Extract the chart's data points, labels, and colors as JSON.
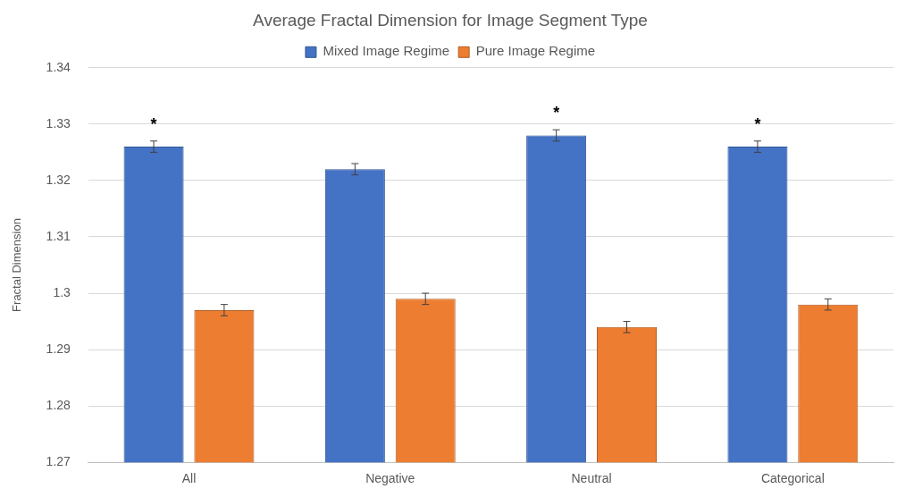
{
  "chart_data": {
    "type": "bar",
    "title": "Average Fractal Dimension for Image Segment Type",
    "ylabel": "Fractal Dimension",
    "categories": [
      "All",
      "Negative",
      "Neutral",
      "Categorical"
    ],
    "series": [
      {
        "name": "Mixed Image Regime",
        "color": "#4472c4",
        "values": [
          1.326,
          1.322,
          1.328,
          1.326
        ],
        "errors": [
          0.001,
          0.001,
          0.001,
          0.001
        ],
        "value_labels": [
          "*",
          null,
          "*",
          "*"
        ]
      },
      {
        "name": "Pure Image Regime",
        "color": "#ed7d31",
        "values": [
          1.297,
          1.299,
          1.294,
          1.298
        ],
        "errors": [
          0.001,
          0.001,
          0.001,
          0.001
        ]
      }
    ],
    "ylim": [
      1.27,
      1.34
    ],
    "yticks": [
      1.27,
      1.28,
      1.29,
      1.3,
      1.31,
      1.32,
      1.33,
      1.34
    ],
    "grid": "y",
    "legend": "top"
  }
}
